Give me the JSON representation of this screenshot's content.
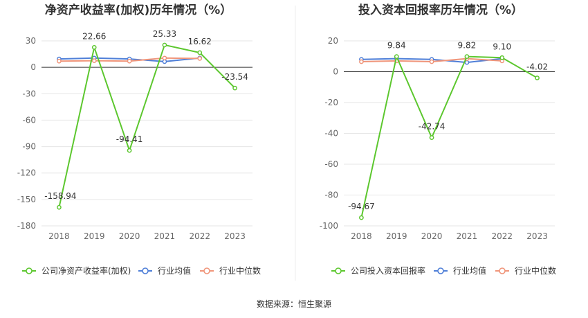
{
  "source_note": "数据来源：恒生聚源",
  "chart_data": [
    {
      "type": "line",
      "title": "净资产收益率(加权)历年情况（%）",
      "categories": [
        "2018",
        "2019",
        "2020",
        "2021",
        "2022",
        "2023"
      ],
      "ylim": [
        -180,
        30
      ],
      "yticks": [
        30,
        0,
        -30,
        -60,
        -90,
        -120,
        -150,
        -180
      ],
      "grid": true,
      "legend_position": "bottom",
      "series": [
        {
          "name": "公司净资产收益率(加权)",
          "color": "#5cc72e",
          "values": [
            -158.94,
            22.66,
            -94.41,
            25.33,
            16.62,
            -23.54
          ],
          "labels": [
            "-158.94",
            "22.66",
            "-94.41",
            "25.33",
            "16.62",
            "-23.54"
          ]
        },
        {
          "name": "行业均值",
          "color": "#4f7fd8",
          "values": [
            9.5,
            10.5,
            9.5,
            6.5,
            10.5,
            null
          ]
        },
        {
          "name": "行业中位数",
          "color": "#f0957a",
          "values": [
            7,
            7.5,
            7,
            10.5,
            10,
            null
          ]
        }
      ]
    },
    {
      "type": "line",
      "title": "投入资本回报率历年情况（%）",
      "categories": [
        "2018",
        "2019",
        "2020",
        "2021",
        "2022",
        "2023"
      ],
      "ylim": [
        -100,
        20
      ],
      "yticks": [
        20,
        0,
        -20,
        -40,
        -60,
        -80,
        -100
      ],
      "grid": true,
      "legend_position": "bottom",
      "series": [
        {
          "name": "公司投入资本回报率",
          "color": "#5cc72e",
          "values": [
            -94.67,
            9.84,
            -42.74,
            9.82,
            9.1,
            -4.02
          ],
          "labels": [
            "-94.67",
            "9.84",
            "-42.74",
            "9.82",
            "9.10",
            "-4.02"
          ]
        },
        {
          "name": "行业均值",
          "color": "#4f7fd8",
          "values": [
            8,
            8.5,
            8,
            6,
            8.5,
            null
          ]
        },
        {
          "name": "行业中位数",
          "color": "#f0957a",
          "values": [
            6.5,
            7,
            6.5,
            8.5,
            7,
            null
          ]
        }
      ]
    }
  ]
}
